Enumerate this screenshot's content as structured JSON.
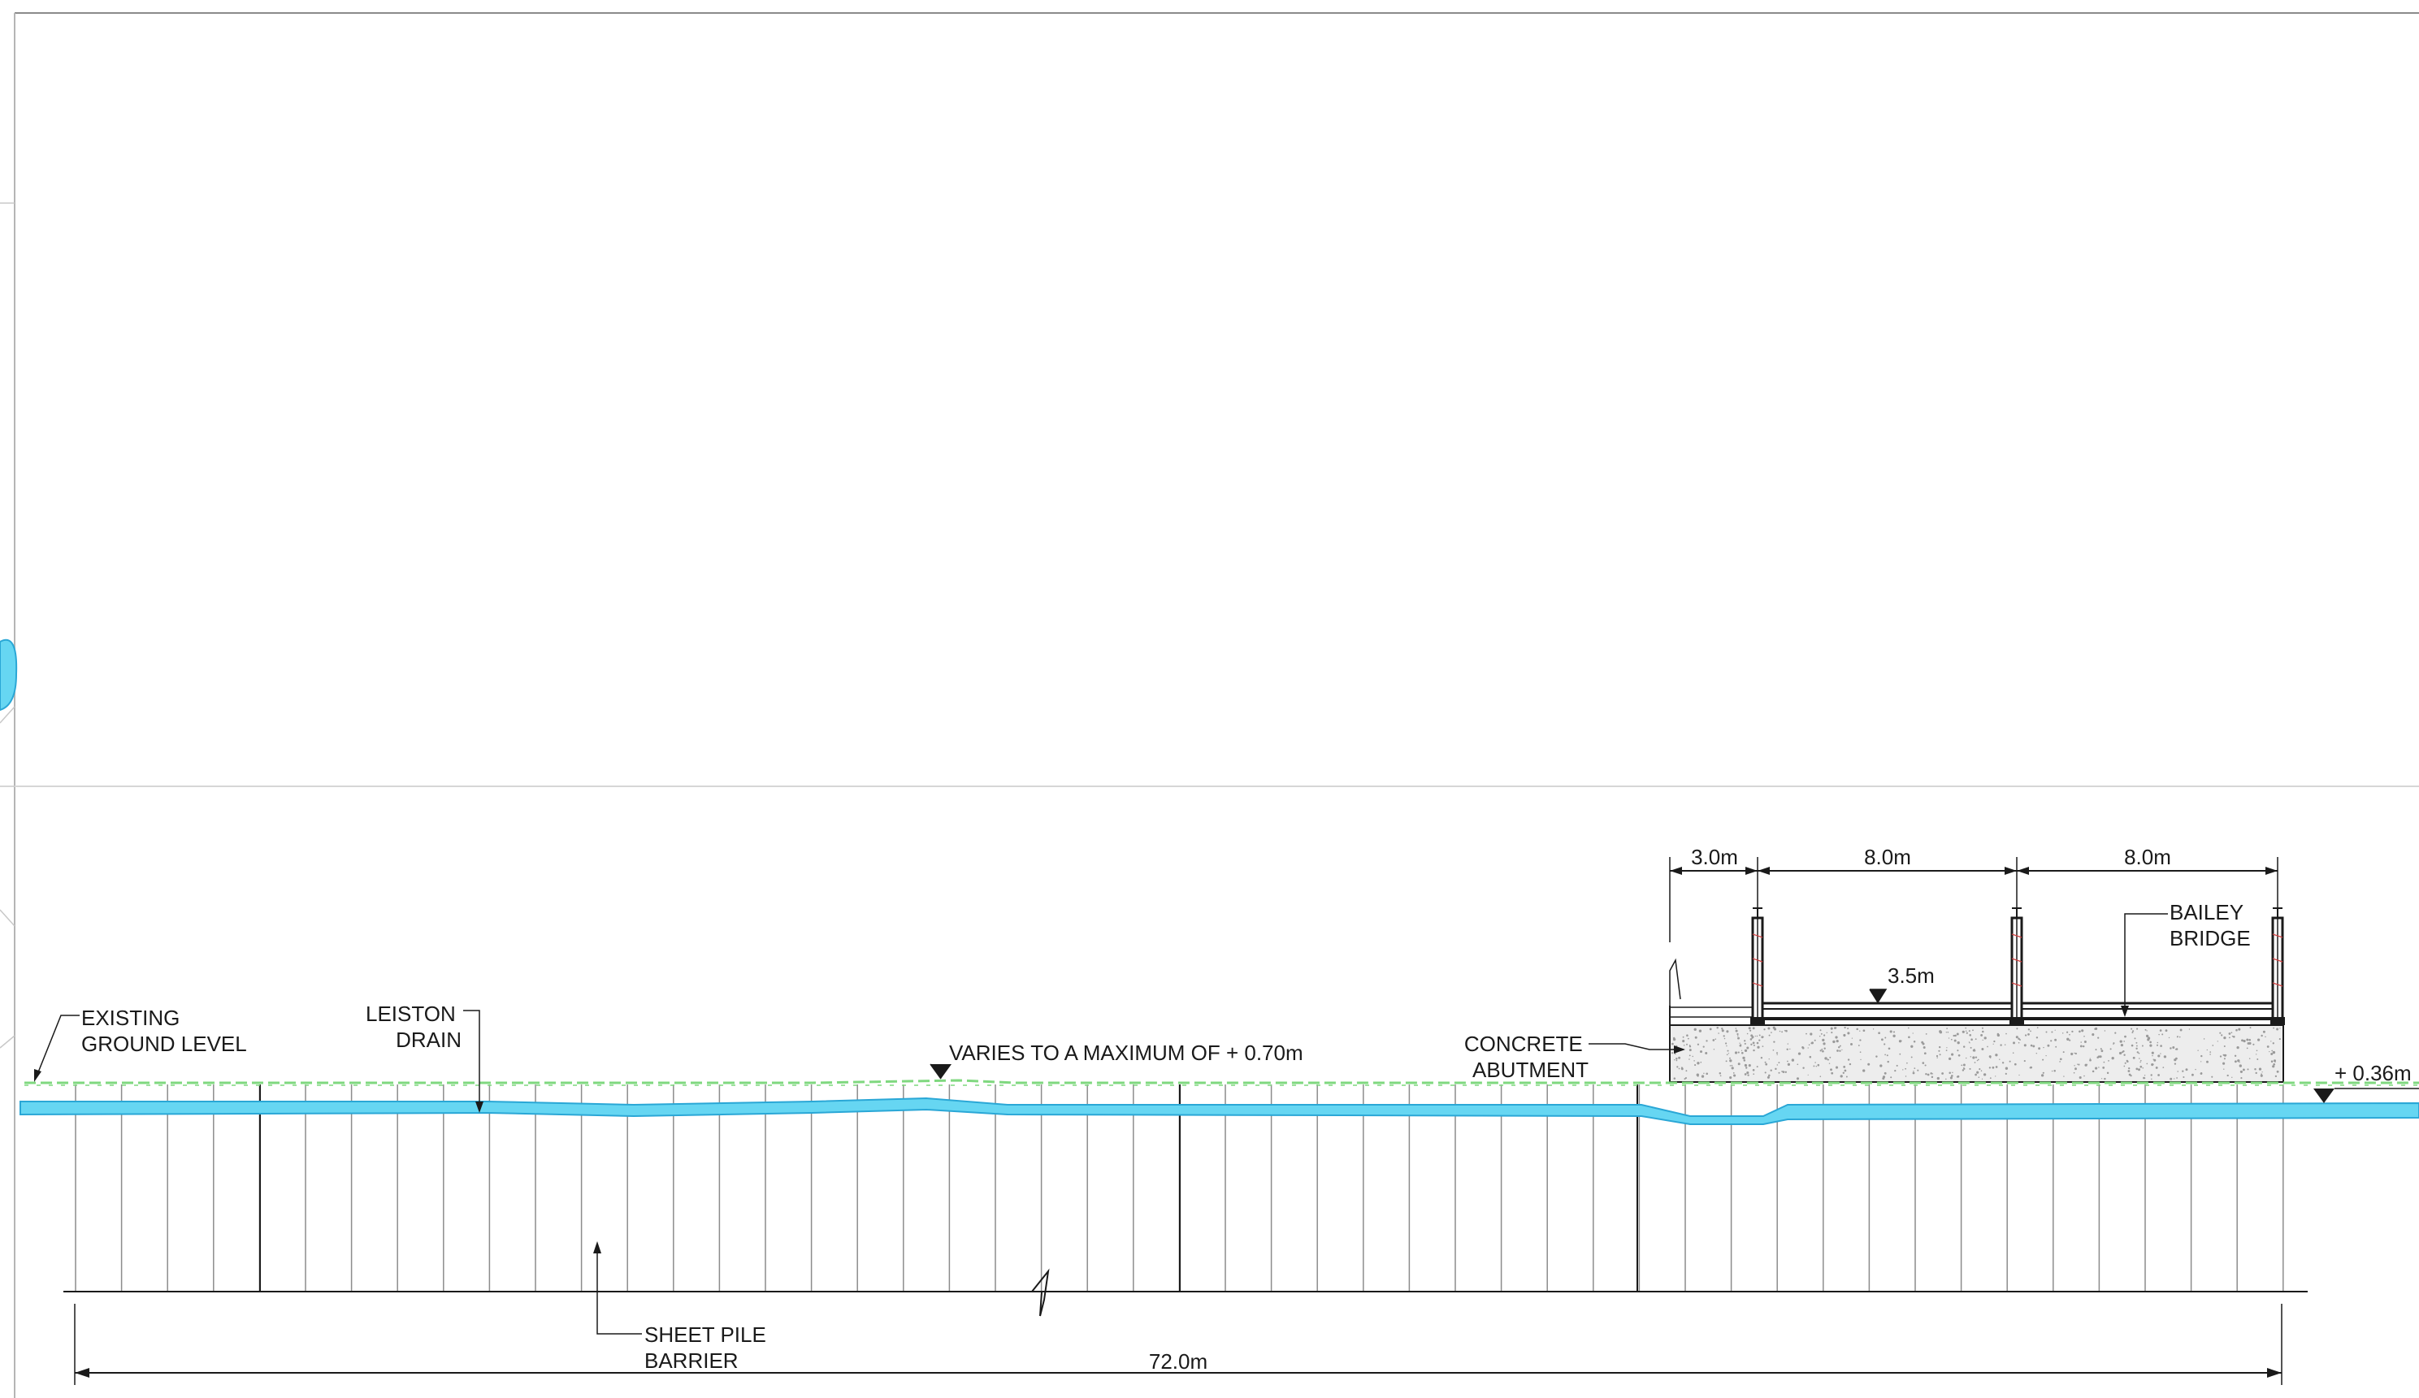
{
  "labels": {
    "existing_ground_level": [
      "EXISTING",
      "GROUND LEVEL"
    ],
    "leiston_drain": [
      "LEISTON",
      "DRAIN"
    ],
    "varies": "VARIES TO A MAXIMUM OF + 0.70m",
    "concrete_abutment": [
      "CONCRETE",
      "ABUTMENT"
    ],
    "bailey_bridge": [
      "BAILEY",
      "BRIDGE"
    ],
    "level_right": "+ 0.36m",
    "sheet_pile_barrier": [
      "SHEET PILE",
      "BARRIER"
    ]
  },
  "dimensions": {
    "abutment_offset": "3.0m",
    "span_1": "8.0m",
    "span_2": "8.0m",
    "deck_level": "3.5m",
    "overall_length": "72.0m"
  },
  "colors": {
    "water": "#66d6f2",
    "water_edge": "#2aa7d6",
    "ground_line": "#7fd87f",
    "line": "#1a1a1a",
    "sheet_line": "#9a9a9a",
    "frame": "#b0b0b0",
    "concrete_fill": "#ededed"
  }
}
